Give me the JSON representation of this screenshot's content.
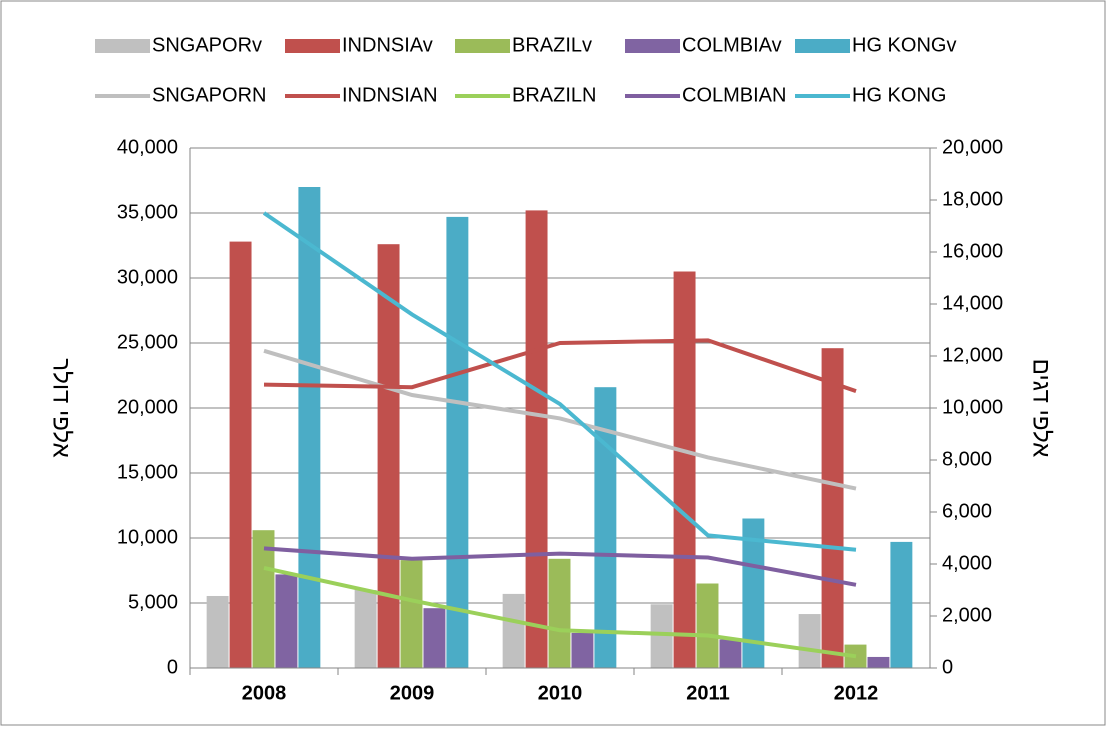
{
  "chart_data": {
    "type": "bar-line",
    "categories": [
      "2008",
      "2009",
      "2010",
      "2011",
      "2012"
    ],
    "ylabel": "אלפי דולר",
    "y2label": "אלפי דגים",
    "ylim": [
      0,
      40000
    ],
    "yticks": [
      0,
      {
        "value": 5000,
        "label": "5,000"
      },
      {
        "value": 10000,
        "label": "10,000"
      },
      {
        "value": 15000,
        "label": "15,000"
      },
      {
        "value": 20000,
        "label": "20,000"
      },
      {
        "value": 25000,
        "label": "25,000"
      },
      {
        "value": 30000,
        "label": "30,000"
      },
      {
        "value": 35000,
        "label": "35,000"
      },
      {
        "value": 40000,
        "label": "40,000"
      }
    ],
    "y2lim": [
      0,
      20000
    ],
    "y2ticks": [
      0,
      {
        "value": 2000,
        "label": "2,000"
      },
      {
        "value": 4000,
        "label": "4,000"
      },
      {
        "value": 6000,
        "label": "6,000"
      },
      {
        "value": 8000,
        "label": "8,000"
      },
      {
        "value": 10000,
        "label": "10,000"
      },
      {
        "value": 12000,
        "label": "12,000"
      },
      {
        "value": 14000,
        "label": "14,000"
      },
      {
        "value": 16000,
        "label": "16,000"
      },
      {
        "value": 18000,
        "label": "18,000"
      },
      {
        "value": 20000,
        "label": "20,000"
      }
    ],
    "grid": true,
    "legend": "top",
    "series": [
      {
        "name": "SNGAPORv",
        "kind": "bar",
        "color": "#c0c0c0",
        "values": [
          5540,
          6000,
          5700,
          4900,
          4150
        ]
      },
      {
        "name": "INDNSIAv",
        "kind": "bar",
        "color": "#c0504d",
        "values": [
          32800,
          32600,
          35200,
          30500,
          24600
        ]
      },
      {
        "name": "BRAZILv",
        "kind": "bar",
        "color": "#9bbb59",
        "values": [
          10600,
          8300,
          8400,
          6500,
          1800
        ]
      },
      {
        "name": "COLMBIAv",
        "kind": "bar",
        "color": "#8064a2",
        "values": [
          7200,
          4600,
          2700,
          2200,
          850
        ]
      },
      {
        "name": "HG KONGv",
        "kind": "bar",
        "color": "#4bacc6",
        "values": [
          37000,
          34700,
          21600,
          11500,
          9700
        ]
      },
      {
        "name": "SNGAPORN",
        "kind": "line",
        "axis": "y2",
        "color": "#bfbfbf",
        "values": [
          12200,
          10500,
          9600,
          8100,
          6900
        ]
      },
      {
        "name": "INDNSIAN",
        "kind": "line",
        "axis": "y2",
        "color": "#c0504d",
        "values": [
          10900,
          10800,
          12500,
          12600,
          10650
        ]
      },
      {
        "name": "BRAZILN",
        "kind": "line",
        "axis": "y2",
        "color": "#9bd05a",
        "values": [
          3850,
          2600,
          1450,
          1250,
          450
        ]
      },
      {
        "name": "COLMBIAN",
        "kind": "line",
        "axis": "y2",
        "color": "#7f5fa0",
        "values": [
          4600,
          4200,
          4400,
          4250,
          3200
        ]
      },
      {
        "name": "HG KONG",
        "kind": "line",
        "axis": "y2",
        "color": "#4bb8d0",
        "values": [
          17500,
          13600,
          10150,
          5100,
          4550
        ]
      }
    ]
  }
}
